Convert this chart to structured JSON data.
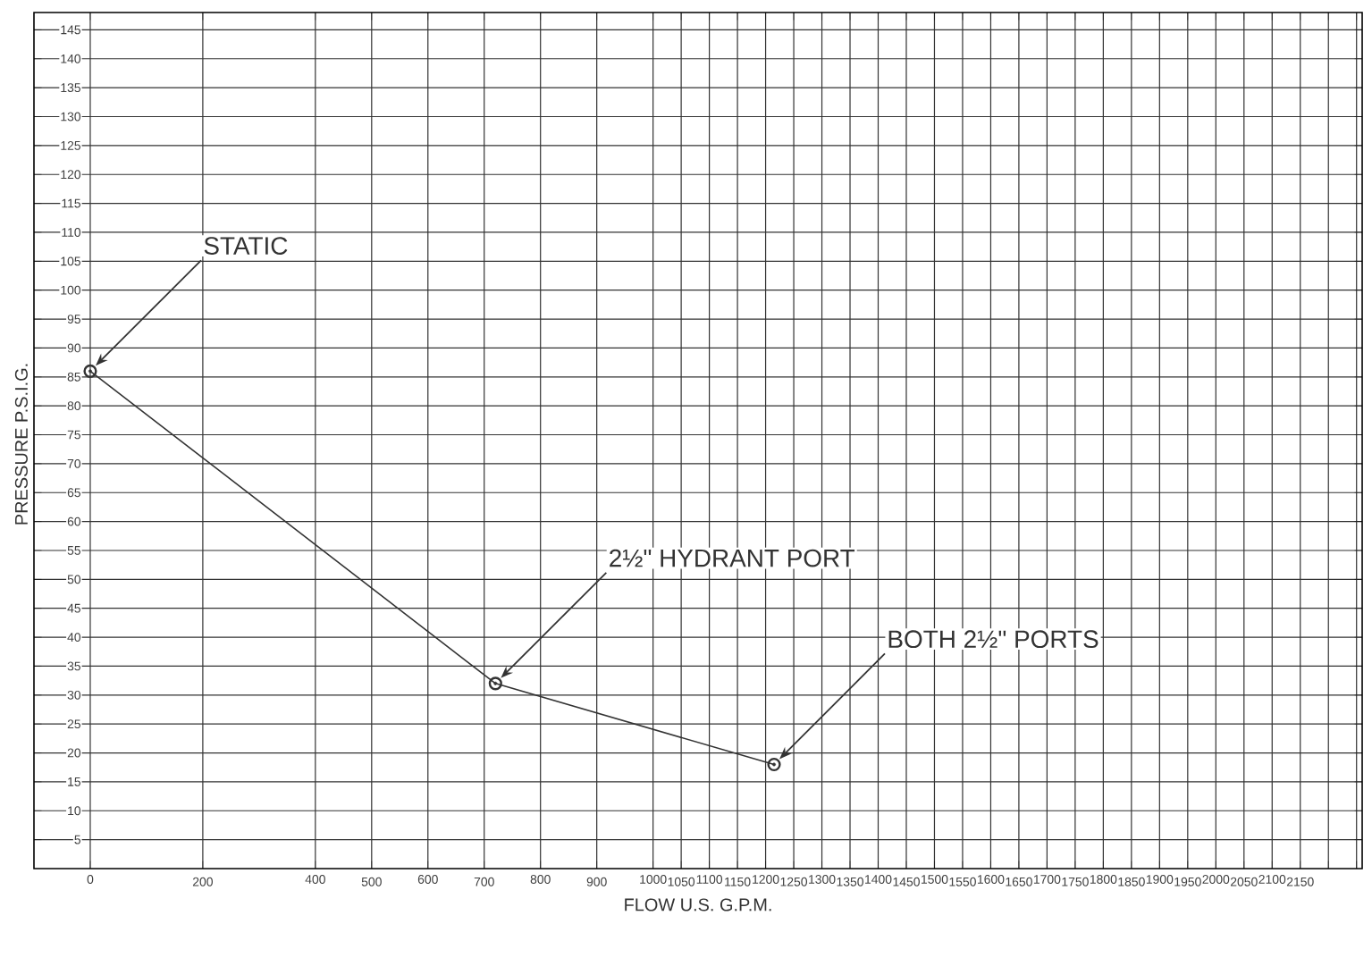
{
  "chart_data": {
    "type": "line",
    "xlabel": "FLOW U.S. G.P.M.",
    "ylabel": "PRESSURE P.S.I.G.",
    "x": [
      0,
      720,
      1215
    ],
    "series": [
      {
        "color": "#333333",
        "values": [
          86,
          32,
          18
        ]
      }
    ],
    "marker": "circle",
    "line_style": "solid",
    "grid": true,
    "xlim": [
      -100,
      2260
    ],
    "ylim": [
      0,
      148
    ],
    "xticks": [
      0,
      200,
      400,
      500,
      600,
      700,
      800,
      900,
      1000,
      1050,
      1100,
      1150,
      1200,
      1250,
      1300,
      1350,
      1400,
      1450,
      1500,
      1550,
      1600,
      1650,
      1700,
      1750,
      1800,
      1850,
      1900,
      1950,
      2000,
      2050,
      2100,
      2150,
      {
        "value": 2200,
        "label": null
      },
      {
        "value": 2250,
        "label": null
      }
    ],
    "yticks": [
      5,
      10,
      15,
      20,
      25,
      30,
      35,
      40,
      45,
      50,
      55,
      60,
      65,
      70,
      75,
      80,
      85,
      90,
      95,
      100,
      105,
      110,
      115,
      120,
      125,
      130,
      135,
      140,
      145
    ],
    "annotations": [
      "STATIC",
      "2½\" HYDRANT PORT",
      "BOTH 2½\" PORTS"
    ]
  }
}
